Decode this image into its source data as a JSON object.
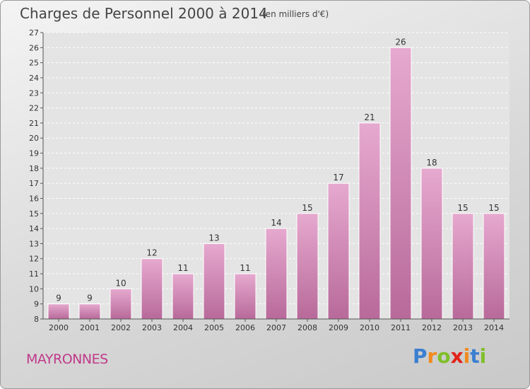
{
  "header": {
    "title": "Charges de Personnel 2000 à 2014",
    "subtitle": "(en milliers d'€)"
  },
  "footer": {
    "town": "MAYRONNES",
    "logo_letters": [
      "P",
      "r",
      "o",
      "x",
      "i",
      "t",
      "i"
    ],
    "logo_colors": [
      "#3b7fd1",
      "#f08a1d",
      "#7fbf2a",
      "#e2231a",
      "#f08a1d",
      "#3b7fd1",
      "#7fbf2a"
    ]
  },
  "chart_data": {
    "type": "bar",
    "title": "Charges de Personnel 2000 à 2014",
    "subtitle": "(en milliers d'€)",
    "categories": [
      "2000",
      "2001",
      "2002",
      "2003",
      "2004",
      "2005",
      "2006",
      "2007",
      "2008",
      "2009",
      "2010",
      "2011",
      "2012",
      "2013",
      "2014"
    ],
    "values": [
      9,
      9,
      10,
      12,
      11,
      13,
      11,
      14,
      15,
      17,
      21,
      26,
      18,
      15,
      15
    ],
    "ylim": [
      8,
      27
    ],
    "yticks": [
      8,
      9,
      10,
      11,
      12,
      13,
      14,
      15,
      16,
      17,
      18,
      19,
      20,
      21,
      22,
      23,
      24,
      25,
      26,
      27
    ],
    "grid": true,
    "bar_color": "#d98fba"
  }
}
